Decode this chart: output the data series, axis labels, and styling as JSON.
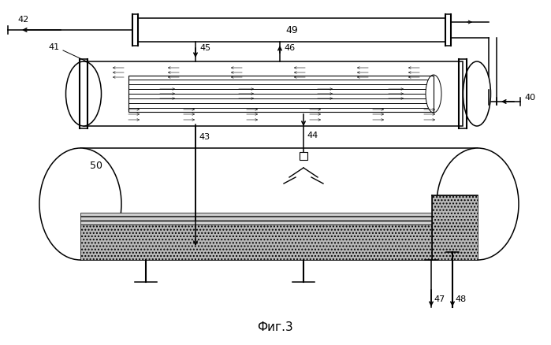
{
  "title": "Фиг.3",
  "bg_color": "#ffffff",
  "line_color": "#000000",
  "fill_light": "#d0d0d0",
  "fill_medium": "#b8b8b8",
  "fill_dots": "#c0c0c0"
}
